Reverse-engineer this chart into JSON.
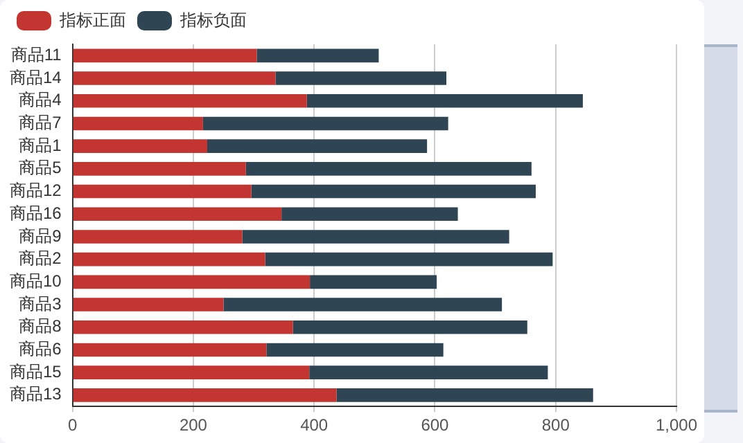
{
  "chart_data": {
    "type": "bar",
    "orientation": "horizontal",
    "stacked": true,
    "categories": [
      "商品11",
      "商品14",
      "商品4",
      "商品7",
      "商品1",
      "商品5",
      "商品12",
      "商品16",
      "商品9",
      "商品2",
      "商品10",
      "商品3",
      "商品8",
      "商品6",
      "商品15",
      "商品13"
    ],
    "series": [
      {
        "name": "指标正面",
        "color": "#c23531",
        "values": [
          305,
          336,
          388,
          216,
          223,
          287,
          296,
          346,
          281,
          319,
          393,
          250,
          365,
          321,
          392,
          437
        ]
      },
      {
        "name": "指标负面",
        "color": "#2f4554",
        "values": [
          202,
          283,
          457,
          406,
          364,
          473,
          471,
          292,
          442,
          476,
          210,
          461,
          388,
          293,
          395,
          425
        ]
      }
    ],
    "xlim": [
      0,
      1000
    ],
    "xticks": [
      0,
      200,
      400,
      600,
      800,
      {
        "value": 1000,
        "label": "1,000"
      }
    ],
    "grid": "x",
    "legend": "top left"
  }
}
